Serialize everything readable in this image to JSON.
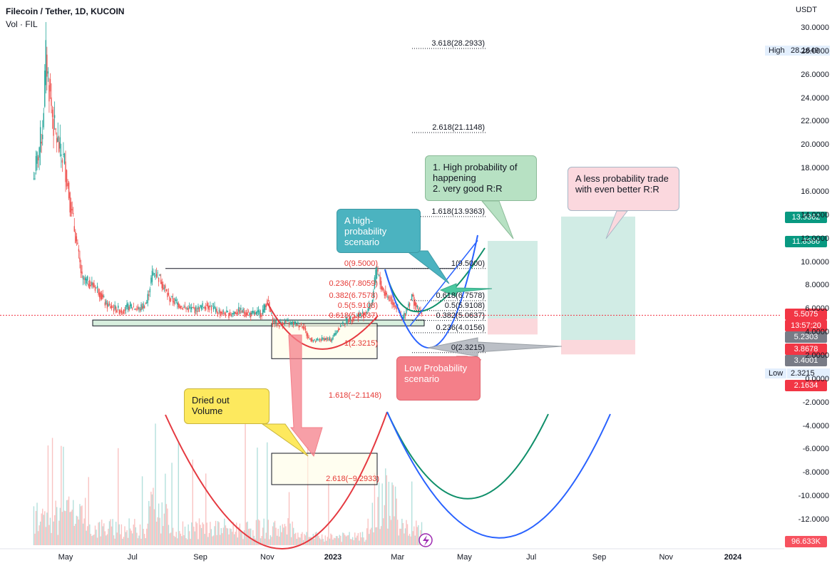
{
  "header": {
    "title": "Filecoin / Tether, 1D, KUCOIN",
    "volume_label": "Vol · FIL",
    "currency": "USDT"
  },
  "annotations": {
    "green_box": "1. High probability of happening\n2. very good R:R",
    "pink_box": "A less probability trade with even better R:R",
    "teal_box": "A high-probability scenario",
    "red_box": "Low Probability scenario",
    "yellow_box": "Dried out Volume"
  },
  "price_tags": {
    "high_label": "High",
    "high_value": "28.1649",
    "low_label": "Low",
    "low_value": "2.3215",
    "tag_13936": "13.9362",
    "tag_11858": "11.8586",
    "tag_last": "5.5075",
    "tag_countdown": "13:57:20",
    "tag_5230": "5.2303",
    "tag_3867": "3.8678",
    "tag_3400": "3.4001",
    "tag_2163": "2.1634",
    "tag_volume": "96.633K"
  },
  "colors": {
    "up": "#26a69a",
    "down": "#ef5350",
    "fib_left": "#e53935",
    "fib_right": "#131722",
    "curve_red": "#e53940",
    "curve_green": "#0f8f6a",
    "curve_blue": "#2962ff"
  },
  "chart_data": {
    "type": "candlestick",
    "title": "Filecoin / Tether, 1D, KUCOIN",
    "y_axis": {
      "unit": "USDT",
      "ticks": [
        "30.0000",
        "28.0000",
        "26.0000",
        "24.0000",
        "22.0000",
        "20.0000",
        "18.0000",
        "16.0000",
        "14.0000",
        "12.0000",
        "10.0000",
        "8.0000",
        "6.0000",
        "4.0000",
        "2.0000",
        "0.0000",
        "-2.0000",
        "-4.0000",
        "-6.0000",
        "-8.0000",
        "-10.0000",
        "-12.0000"
      ],
      "tick_values": [
        30,
        28,
        26,
        24,
        22,
        20,
        18,
        16,
        14,
        12,
        10,
        8,
        6,
        4,
        2,
        0,
        -2,
        -4,
        -6,
        -8,
        -10,
        -12
      ]
    },
    "x_axis": {
      "ticks": [
        "May",
        "Jul",
        "Sep",
        "Nov",
        "2023",
        "Mar",
        "May",
        "Jul",
        "Sep",
        "Nov",
        "2024"
      ],
      "tick_days": [
        121,
        182,
        244,
        305,
        365,
        424,
        485,
        546,
        608,
        669,
        730
      ]
    },
    "series_close": [
      {
        "day": 92,
        "close": 17.2
      },
      {
        "day": 100,
        "close": 21.5
      },
      {
        "day": 103,
        "close": 27.6
      },
      {
        "day": 106,
        "close": 25.0
      },
      {
        "day": 110,
        "close": 21.8
      },
      {
        "day": 115,
        "close": 19.8
      },
      {
        "day": 120,
        "close": 18.6
      },
      {
        "day": 125,
        "close": 15.2
      },
      {
        "day": 130,
        "close": 12.3
      },
      {
        "day": 136,
        "close": 8.6
      },
      {
        "day": 142,
        "close": 8.3
      },
      {
        "day": 150,
        "close": 7.8
      },
      {
        "day": 158,
        "close": 6.4
      },
      {
        "day": 165,
        "close": 6.1
      },
      {
        "day": 172,
        "close": 5.9
      },
      {
        "day": 180,
        "close": 6.3
      },
      {
        "day": 188,
        "close": 6.0
      },
      {
        "day": 195,
        "close": 6.6
      },
      {
        "day": 200,
        "close": 9.0
      },
      {
        "day": 203,
        "close": 9.2
      },
      {
        "day": 208,
        "close": 8.5
      },
      {
        "day": 215,
        "close": 7.0
      },
      {
        "day": 222,
        "close": 6.6
      },
      {
        "day": 230,
        "close": 6.1
      },
      {
        "day": 240,
        "close": 6.0
      },
      {
        "day": 250,
        "close": 6.4
      },
      {
        "day": 260,
        "close": 5.8
      },
      {
        "day": 270,
        "close": 5.6
      },
      {
        "day": 280,
        "close": 5.9
      },
      {
        "day": 290,
        "close": 5.6
      },
      {
        "day": 300,
        "close": 5.7
      },
      {
        "day": 305,
        "close": 6.8
      },
      {
        "day": 310,
        "close": 5.0
      },
      {
        "day": 315,
        "close": 4.7
      },
      {
        "day": 320,
        "close": 4.9
      },
      {
        "day": 330,
        "close": 4.8
      },
      {
        "day": 338,
        "close": 4.6
      },
      {
        "day": 342,
        "close": 3.6
      },
      {
        "day": 348,
        "close": 3.3
      },
      {
        "day": 356,
        "close": 3.5
      },
      {
        "day": 363,
        "close": 3.4
      },
      {
        "day": 370,
        "close": 4.4
      },
      {
        "day": 378,
        "close": 5.1
      },
      {
        "day": 386,
        "close": 5.4
      },
      {
        "day": 393,
        "close": 5.6
      },
      {
        "day": 400,
        "close": 6.4
      },
      {
        "day": 405,
        "close": 9.5
      },
      {
        "day": 408,
        "close": 8.2
      },
      {
        "day": 412,
        "close": 7.4
      },
      {
        "day": 418,
        "close": 6.8
      },
      {
        "day": 424,
        "close": 6.1
      },
      {
        "day": 428,
        "close": 5.0
      },
      {
        "day": 433,
        "close": 6.3
      },
      {
        "day": 437,
        "close": 7.1
      },
      {
        "day": 442,
        "close": 6.0
      },
      {
        "day": 447,
        "close": 5.5
      }
    ],
    "fib_levels_left": [
      {
        "label": "0(9.5000)",
        "value": 9.5
      },
      {
        "label": "0.236(7.8059)",
        "value": 7.8059
      },
      {
        "label": "0.382(6.7578)",
        "value": 6.7578
      },
      {
        "label": "0.5(5.9108)",
        "value": 5.9108
      },
      {
        "label": "0.618(5.0637)",
        "value": 5.0637
      },
      {
        "label": "1(2.3215)",
        "value": 2.3215
      },
      {
        "label": "1.618(−2.1148)",
        "value": -2.1148
      },
      {
        "label": "2.618(−9.2933)",
        "value": -9.2933
      }
    ],
    "fib_levels_right": [
      {
        "label": "3.618(28.2933)",
        "value": 28.2933
      },
      {
        "label": "2.618(21.1148)",
        "value": 21.1148
      },
      {
        "label": "1.618(13.9363)",
        "value": 13.9363
      },
      {
        "label": "1(9.5000)",
        "value": 9.5
      },
      {
        "label": "0.618(6.7578)",
        "value": 6.7578
      },
      {
        "label": "0.5(5.9108)",
        "value": 5.9108
      },
      {
        "label": "0.382(5.0637)",
        "value": 5.0637
      },
      {
        "label": "0.236(4.0156)",
        "value": 4.0156
      },
      {
        "label": "0(2.3215)",
        "value": 2.3215
      }
    ],
    "support_zone": {
      "low": 4.6,
      "high": 5.1
    },
    "resistance_line": 9.5,
    "positions": [
      {
        "name": "long-position-1",
        "entry": 5.2303,
        "target": 11.8586,
        "stop": 3.8678
      },
      {
        "name": "long-position-2",
        "entry": 3.4001,
        "target": 13.9362,
        "stop": 2.1634
      }
    ],
    "volume": {
      "last": "96.633K"
    },
    "legend": "none"
  }
}
